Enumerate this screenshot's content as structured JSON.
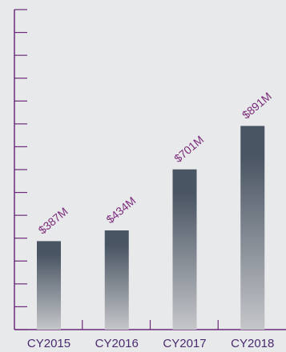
{
  "chart_data": {
    "type": "bar",
    "categories": [
      "CY2015",
      "CY2016",
      "CY2017",
      "CY2018"
    ],
    "values": [
      387,
      434,
      701,
      891
    ],
    "data_labels": [
      "$387M",
      "$434M",
      "$701M",
      "$891M"
    ],
    "unit": "$M",
    "ylim": [
      0,
      1400
    ],
    "y_tick_count": 14,
    "y_tick_labels": "none",
    "grid": false,
    "legend": "none",
    "title": "",
    "xlabel": "",
    "ylabel": "",
    "colors": {
      "bar_top": "#4a5563",
      "bar_bottom": "#c4c6c9",
      "axis": "#6b2a7a",
      "tick_label": "#4a2a6e",
      "data_label": "#7a2a7a",
      "background": "#e8e9eb"
    }
  }
}
